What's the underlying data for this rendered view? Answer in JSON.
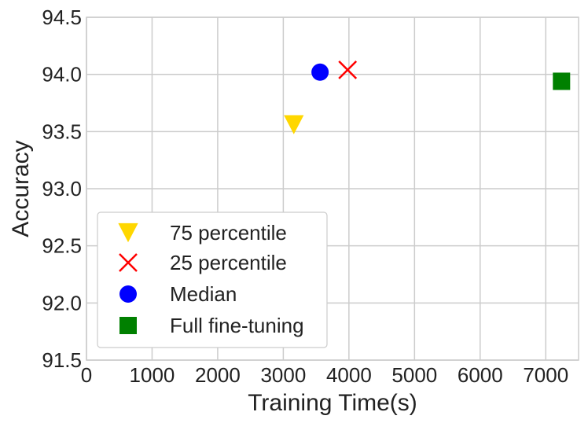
{
  "chart_data": {
    "type": "scatter",
    "title": "",
    "xlabel": "Training Time(s)",
    "ylabel": "Accuracy",
    "xlim": [
      0,
      7500
    ],
    "ylim": [
      91.5,
      94.5
    ],
    "xticks": [
      0,
      1000,
      2000,
      3000,
      4000,
      5000,
      6000,
      7000
    ],
    "yticks": [
      91.5,
      92.0,
      92.5,
      93.0,
      93.5,
      94.0,
      94.5
    ],
    "xtick_labels": [
      "0",
      "1000",
      "2000",
      "3000",
      "4000",
      "5000",
      "6000",
      "7000"
    ],
    "ytick_labels": [
      "91.5",
      "92.0",
      "92.5",
      "93.0",
      "93.5",
      "94.0",
      "94.5"
    ],
    "grid": true,
    "legend_position": "lower-left",
    "series": [
      {
        "name": "75 percentile",
        "marker": "triangle-down",
        "color": "#FFD700",
        "points": [
          {
            "x": 3160,
            "y": 93.56
          }
        ]
      },
      {
        "name": "25 percentile",
        "marker": "x",
        "color": "#FF0000",
        "points": [
          {
            "x": 3980,
            "y": 94.04
          }
        ]
      },
      {
        "name": "Median",
        "marker": "circle",
        "color": "#0000FF",
        "points": [
          {
            "x": 3560,
            "y": 94.02
          }
        ]
      },
      {
        "name": "Full fine-tuning",
        "marker": "square",
        "color": "#008000",
        "points": [
          {
            "x": 7240,
            "y": 93.94
          }
        ]
      }
    ]
  }
}
